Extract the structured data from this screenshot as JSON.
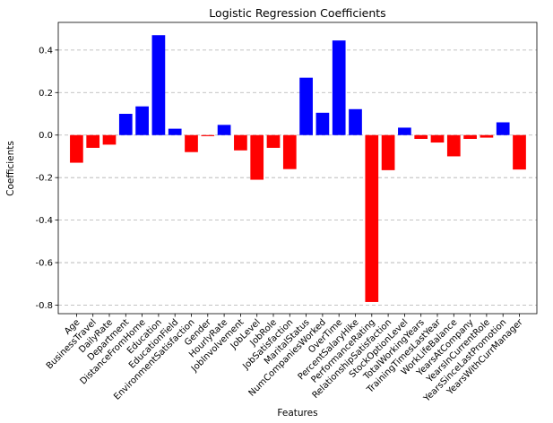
{
  "chart_data": {
    "type": "bar",
    "title": "Logistic Regression Coefficients",
    "xlabel": "Features",
    "ylabel": "Coefficients",
    "ylim": [
      -0.84,
      0.53
    ],
    "yticks": [
      -0.8,
      -0.6,
      -0.4,
      -0.2,
      0.0,
      0.2,
      0.4
    ],
    "grid": "y-dashed",
    "colors": {
      "positive": "#0000ff",
      "negative": "#ff0000"
    },
    "categories": [
      "Age",
      "BusinessTravel",
      "DailyRate",
      "Department",
      "DistanceFromHome",
      "Education",
      "EducationField",
      "EnvironmentSatisfaction",
      "Gender",
      "HourlyRate",
      "JobInvolvement",
      "JobLevel",
      "JobRole",
      "JobSatisfaction",
      "MaritalStatus",
      "NumCompaniesWorked",
      "OverTime",
      "PercentSalaryHike",
      "PerformanceRating",
      "RelationshipSatisfaction",
      "StockOptionLevel",
      "TotalWorkingYears",
      "TrainingTimesLastYear",
      "WorkLifeBalance",
      "YearsAtCompany",
      "YearsInCurrentRole",
      "YearsSinceLastPromotion",
      "YearsWithCurrManager"
    ],
    "values": [
      -0.13,
      -0.06,
      -0.045,
      0.1,
      0.135,
      0.47,
      0.03,
      -0.08,
      -0.005,
      0.048,
      -0.072,
      -0.21,
      -0.06,
      -0.16,
      0.27,
      0.105,
      0.445,
      0.122,
      -0.785,
      -0.165,
      0.035,
      -0.018,
      -0.035,
      -0.1,
      -0.018,
      -0.012,
      0.06,
      -0.162
    ]
  }
}
